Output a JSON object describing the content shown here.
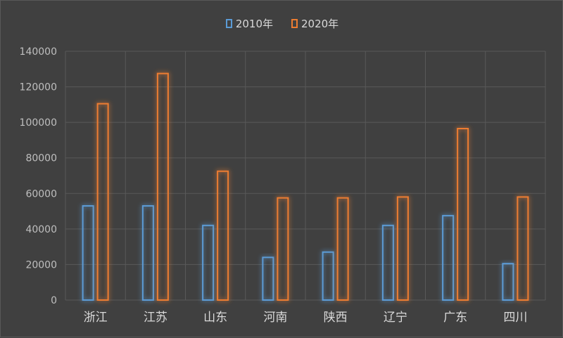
{
  "chart_data": {
    "type": "bar",
    "categories": [
      "浙江",
      "江苏",
      "山东",
      "河南",
      "陕西",
      "辽宁",
      "广东",
      "四川"
    ],
    "series": [
      {
        "name": "2010年",
        "color": "#5b9bd5",
        "values": [
          53000,
          53000,
          42000,
          24000,
          27000,
          42000,
          47500,
          20500
        ]
      },
      {
        "name": "2020年",
        "color": "#ed7d31",
        "values": [
          110500,
          127500,
          72500,
          57500,
          57500,
          58000,
          96500,
          58000
        ]
      }
    ],
    "ylim": [
      0,
      140000
    ],
    "yticks": [
      "0",
      "20000",
      "40000",
      "60000",
      "80000",
      "100000",
      "120000",
      "140000"
    ],
    "grid": true,
    "legend_position": "top-center"
  }
}
